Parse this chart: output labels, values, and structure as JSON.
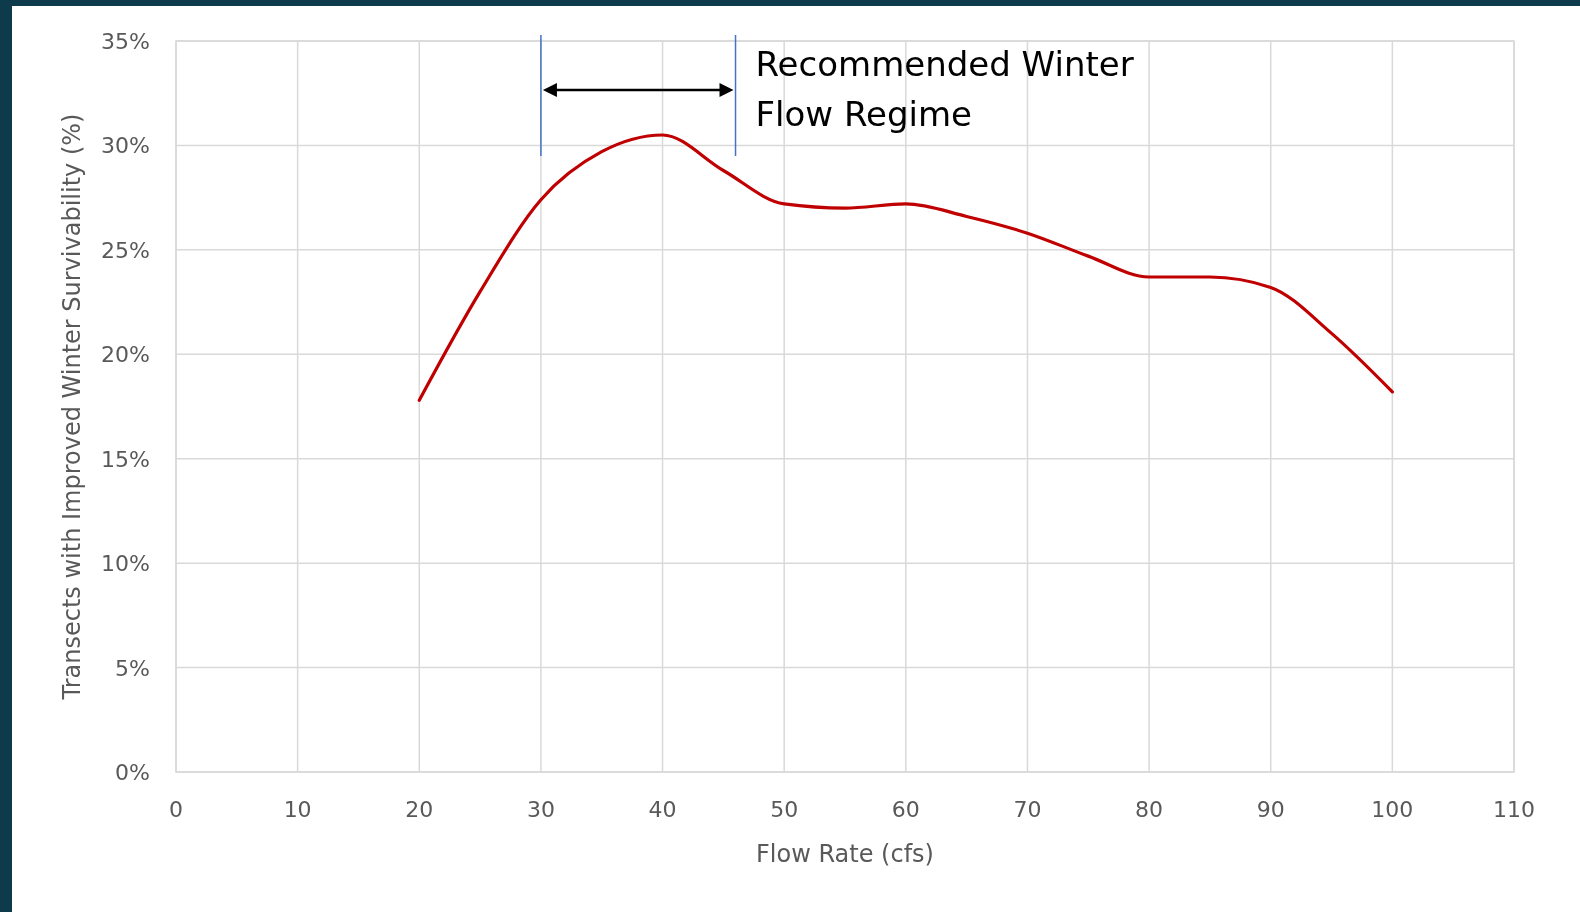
{
  "chart_data": {
    "type": "line",
    "xlabel": "Flow Rate (cfs)",
    "ylabel": "Transects with Improved Winter Survivability (%)",
    "x": [
      20,
      25,
      30,
      35,
      40,
      45,
      50,
      55,
      60,
      65,
      70,
      75,
      80,
      85,
      90,
      95,
      100
    ],
    "series": [
      {
        "color": "#c00000",
        "values": [
          17.8,
          23.0,
          27.4,
          29.7,
          30.5,
          28.8,
          27.2,
          27.0,
          27.2,
          26.6,
          25.8,
          24.7,
          23.7,
          23.7,
          23.2,
          21.0,
          18.2
        ]
      }
    ],
    "xlim": [
      0,
      110
    ],
    "xticks": [
      0,
      10,
      20,
      30,
      40,
      50,
      60,
      70,
      80,
      90,
      100,
      110
    ],
    "ylim": [
      0,
      35
    ],
    "yticks": [
      {
        "value": 0,
        "label": "0%"
      },
      {
        "value": 5,
        "label": "5%"
      },
      {
        "value": 10,
        "label": "10%"
      },
      {
        "value": 15,
        "label": "15%"
      },
      {
        "value": 20,
        "label": "20%"
      },
      {
        "value": 25,
        "label": "25%"
      },
      {
        "value": 30,
        "label": "30%"
      },
      {
        "value": 35,
        "label": "35%"
      }
    ],
    "grid": true,
    "marker": "none",
    "line_style": "solid",
    "ref_lines": [
      {
        "axis": "x",
        "value": 30,
        "color": "#4472c4"
      },
      {
        "axis": "x",
        "value": 46,
        "color": "#4472c4"
      }
    ],
    "annotations": [
      "Recommended Winter Flow Regime"
    ]
  }
}
